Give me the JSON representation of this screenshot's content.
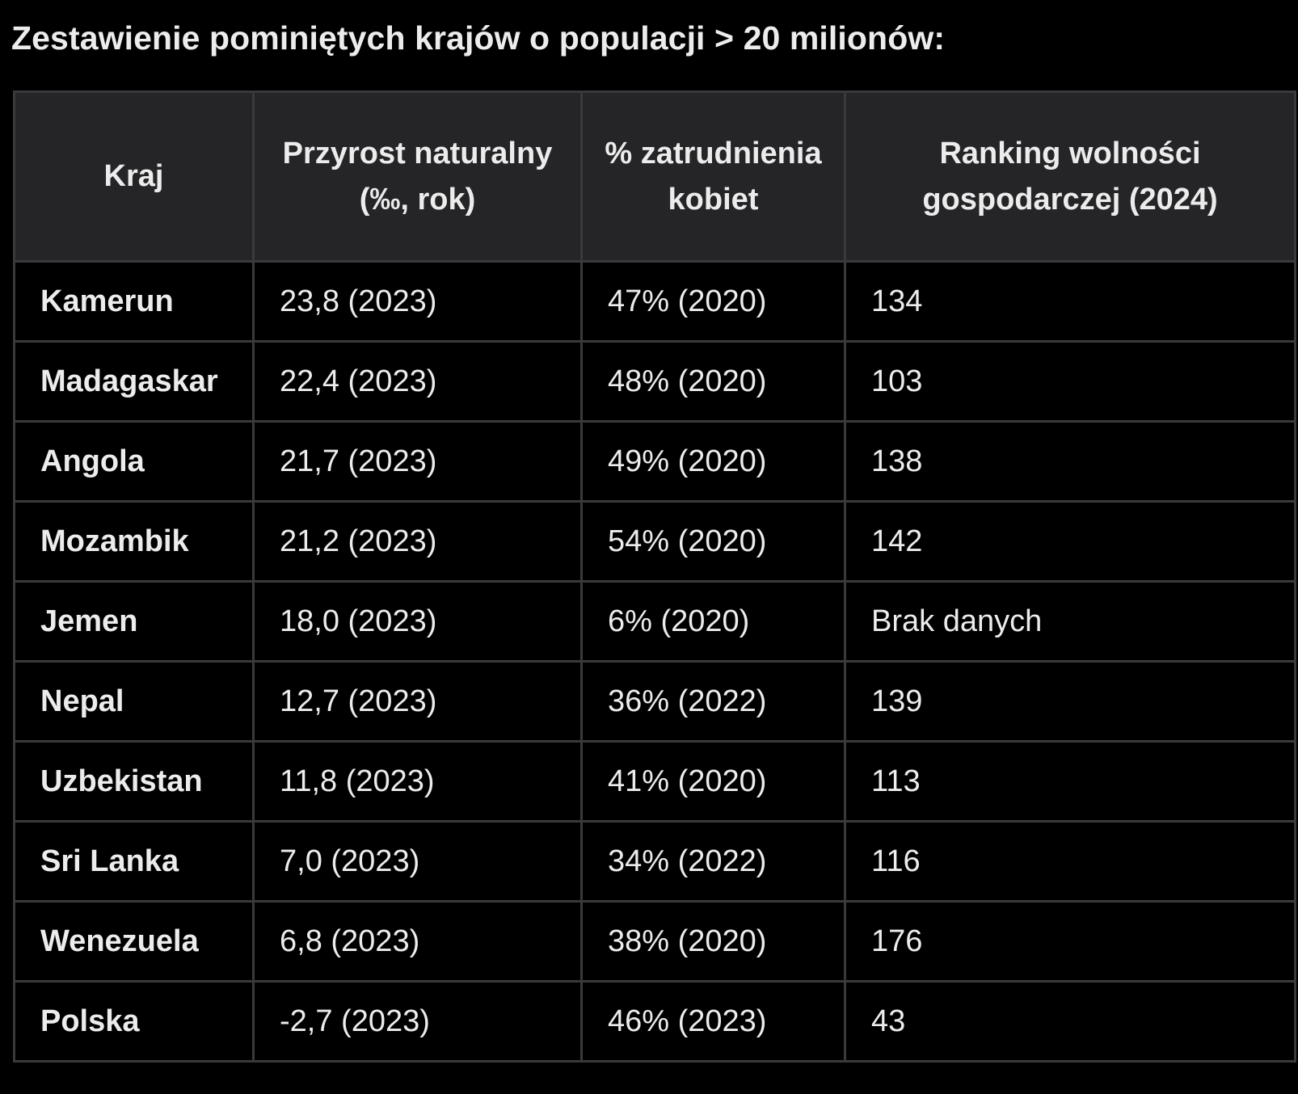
{
  "title": "Zestawienie pominiętych krajów o populacji > 20 milionów:",
  "table": {
    "headers": [
      "Kraj",
      "Przyrost naturalny (‰, rok)",
      "% zatrudnienia kobiet",
      "Ranking wolności gospodarczej (2024)"
    ],
    "rows": [
      [
        "Kamerun",
        "23,8 (2023)",
        "47% (2020)",
        "134"
      ],
      [
        "Madagaskar",
        "22,4 (2023)",
        "48% (2020)",
        "103"
      ],
      [
        "Angola",
        "21,7 (2023)",
        "49% (2020)",
        "138"
      ],
      [
        "Mozambik",
        "21,2 (2023)",
        "54% (2020)",
        "142"
      ],
      [
        "Jemen",
        "18,0 (2023)",
        "6% (2020)",
        "Brak danych"
      ],
      [
        "Nepal",
        "12,7 (2023)",
        "36% (2022)",
        "139"
      ],
      [
        "Uzbekistan",
        "11,8 (2023)",
        "41% (2020)",
        "113"
      ],
      [
        "Sri Lanka",
        "7,0 (2023)",
        "34% (2022)",
        "116"
      ],
      [
        "Wenezuela",
        "6,8 (2023)",
        "38% (2020)",
        "176"
      ],
      [
        "Polska",
        "-2,7 (2023)",
        "46% (2023)",
        "43"
      ]
    ]
  },
  "colors": {
    "background": "#000000",
    "header_background": "#252528",
    "border": "#3a3a3c",
    "text": "#ececec"
  }
}
